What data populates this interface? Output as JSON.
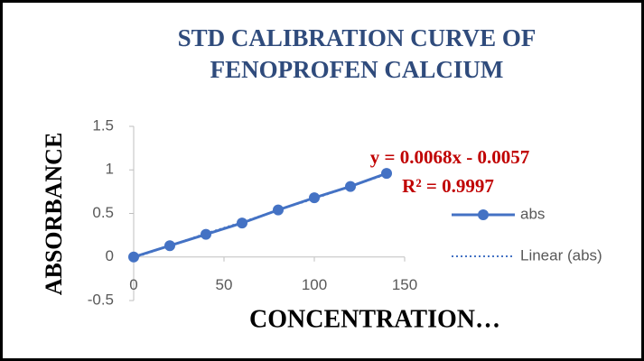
{
  "chart_data": {
    "type": "line",
    "title": [
      "STD CALIBRATION CURVE OF",
      "FENOPROFEN CALCIUM"
    ],
    "x_label": "CONCENTRATION…",
    "y_label": "ABSORBANCE",
    "annotations": [
      "y = 0.0068x - 0.0057",
      "R² = 0.9997"
    ],
    "x": [
      0,
      20,
      40,
      60,
      80,
      100,
      120,
      140
    ],
    "series": [
      {
        "name": "abs",
        "color": "#4472c4",
        "style": "solid-markers",
        "values": [
          0,
          0.13,
          0.26,
          0.39,
          0.54,
          0.68,
          0.81,
          0.96
        ]
      },
      {
        "name": "Linear (abs)",
        "color": "#4472c4",
        "style": "dotted",
        "values": [
          -0.01,
          0.13,
          0.27,
          0.4,
          0.54,
          0.67,
          0.81,
          0.95
        ]
      }
    ],
    "xlim": [
      0,
      150
    ],
    "xticks": [
      0,
      50,
      100,
      150
    ],
    "ylim": [
      -0.5,
      1.5
    ],
    "yticks": [
      1.5,
      1,
      0.5,
      0,
      -0.5
    ],
    "grid": false,
    "legend": "right"
  }
}
